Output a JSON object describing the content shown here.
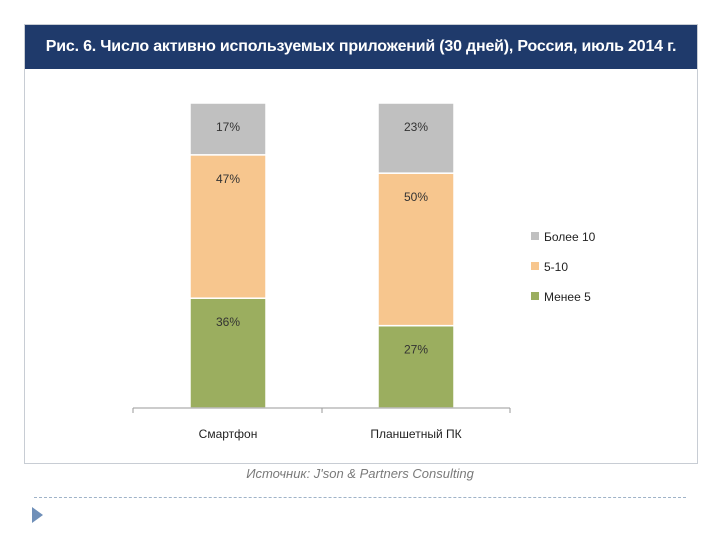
{
  "header": {
    "title": "Рис. 6. Число активно используемых приложений (30 дней), Россия, июль 2014 г."
  },
  "source_text": "Источник: J'son & Partners Consulting",
  "colors": {
    "title_bg": "#1f3a6b",
    "more_10": "#c0c0c0",
    "five_10": "#f7c68e",
    "less_5": "#9bae5f"
  },
  "chart_data": {
    "type": "bar",
    "stacked": true,
    "percent": true,
    "title": "",
    "xlabel": "",
    "ylabel": "",
    "ylim": [
      0,
      100
    ],
    "categories": [
      "Смартфон",
      "Планшетный ПК"
    ],
    "series": [
      {
        "name": "Менее 5",
        "values": [
          36,
          27
        ],
        "labels": [
          "36%",
          "27%"
        ],
        "color": "#9bae5f"
      },
      {
        "name": "5-10",
        "values": [
          47,
          50
        ],
        "labels": [
          "47%",
          "50%"
        ],
        "color": "#f7c68e"
      },
      {
        "name": "Более 10",
        "values": [
          17,
          23
        ],
        "labels": [
          "17%",
          "23%"
        ],
        "color": "#c0c0c0"
      }
    ],
    "legend": {
      "position": "right",
      "order": [
        "Более 10",
        "5-10",
        "Менее 5"
      ]
    },
    "grid": false
  }
}
